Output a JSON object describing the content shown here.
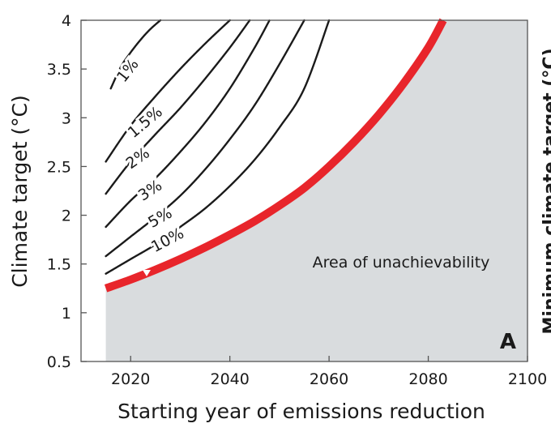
{
  "chart_data": {
    "type": "line",
    "title": "",
    "panel_label": "A",
    "xlabel": "Starting year of emissions reduction",
    "ylabel": "Climate target (°C)",
    "xlim": [
      2010,
      2100
    ],
    "ylim": [
      0.5,
      4
    ],
    "xticks": [
      2020,
      2040,
      2060,
      2080,
      2100
    ],
    "xtick_labels": [
      "2020",
      "2040",
      "2060",
      "2080",
      "2100"
    ],
    "yticks": [
      0.5,
      1,
      1.5,
      2,
      2.5,
      3,
      3.5,
      4
    ],
    "ytick_labels": [
      "0.5",
      "1",
      "1.5",
      "2",
      "2.5",
      "3",
      "3.5",
      "4"
    ],
    "grid": false,
    "series": [
      {
        "name": "1%",
        "label": "1%",
        "color": "#1a1a1a",
        "x": [
          2016,
          2018,
          2020,
          2022,
          2024,
          2026
        ],
        "y": [
          3.3,
          3.52,
          3.67,
          3.8,
          3.91,
          4.0
        ]
      },
      {
        "name": "1.5%",
        "label": "1.5%",
        "color": "#1a1a1a",
        "x": [
          2015,
          2020,
          2025,
          2030,
          2035,
          2040
        ],
        "y": [
          2.55,
          2.92,
          3.22,
          3.5,
          3.76,
          4.0
        ]
      },
      {
        "name": "2%",
        "label": "2%",
        "color": "#1a1a1a",
        "x": [
          2015,
          2020,
          2025,
          2030,
          2035,
          2040,
          2044
        ],
        "y": [
          2.22,
          2.55,
          2.83,
          3.1,
          3.4,
          3.72,
          4.0
        ]
      },
      {
        "name": "3%",
        "label": "3%",
        "color": "#1a1a1a",
        "x": [
          2015,
          2020,
          2025,
          2030,
          2035,
          2040,
          2045,
          2048
        ],
        "y": [
          1.88,
          2.15,
          2.38,
          2.65,
          2.95,
          3.3,
          3.72,
          4.0
        ]
      },
      {
        "name": "5%",
        "label": "5%",
        "color": "#1a1a1a",
        "x": [
          2015,
          2020,
          2025,
          2030,
          2035,
          2040,
          2045,
          2050,
          2055
        ],
        "y": [
          1.58,
          1.78,
          1.98,
          2.2,
          2.47,
          2.78,
          3.13,
          3.55,
          4.0
        ]
      },
      {
        "name": "10%",
        "label": "10%",
        "color": "#1a1a1a",
        "x": [
          2015,
          2020,
          2025,
          2030,
          2035,
          2040,
          2045,
          2050,
          2055,
          2060
        ],
        "y": [
          1.4,
          1.55,
          1.7,
          1.88,
          2.07,
          2.3,
          2.57,
          2.9,
          3.3,
          4.0
        ]
      },
      {
        "name": "limit",
        "label": "",
        "color": "#e8252b",
        "x": [
          2015,
          2020,
          2025,
          2030,
          2035,
          2040,
          2045,
          2050,
          2055,
          2060,
          2065,
          2070,
          2075,
          2080,
          2083
        ],
        "y": [
          1.25,
          1.34,
          1.44,
          1.55,
          1.67,
          1.8,
          1.94,
          2.1,
          2.28,
          2.5,
          2.75,
          3.03,
          3.35,
          3.72,
          4.0
        ]
      }
    ],
    "annotations": [
      {
        "text": "Area of unachievability",
        "x": 2065,
        "y": 1.5
      }
    ],
    "fill_region": {
      "name": "Area of unachievability",
      "color": "#d9dcde",
      "x_start": 2015
    }
  },
  "cut_off_label": "Minimum climate target (°C)"
}
